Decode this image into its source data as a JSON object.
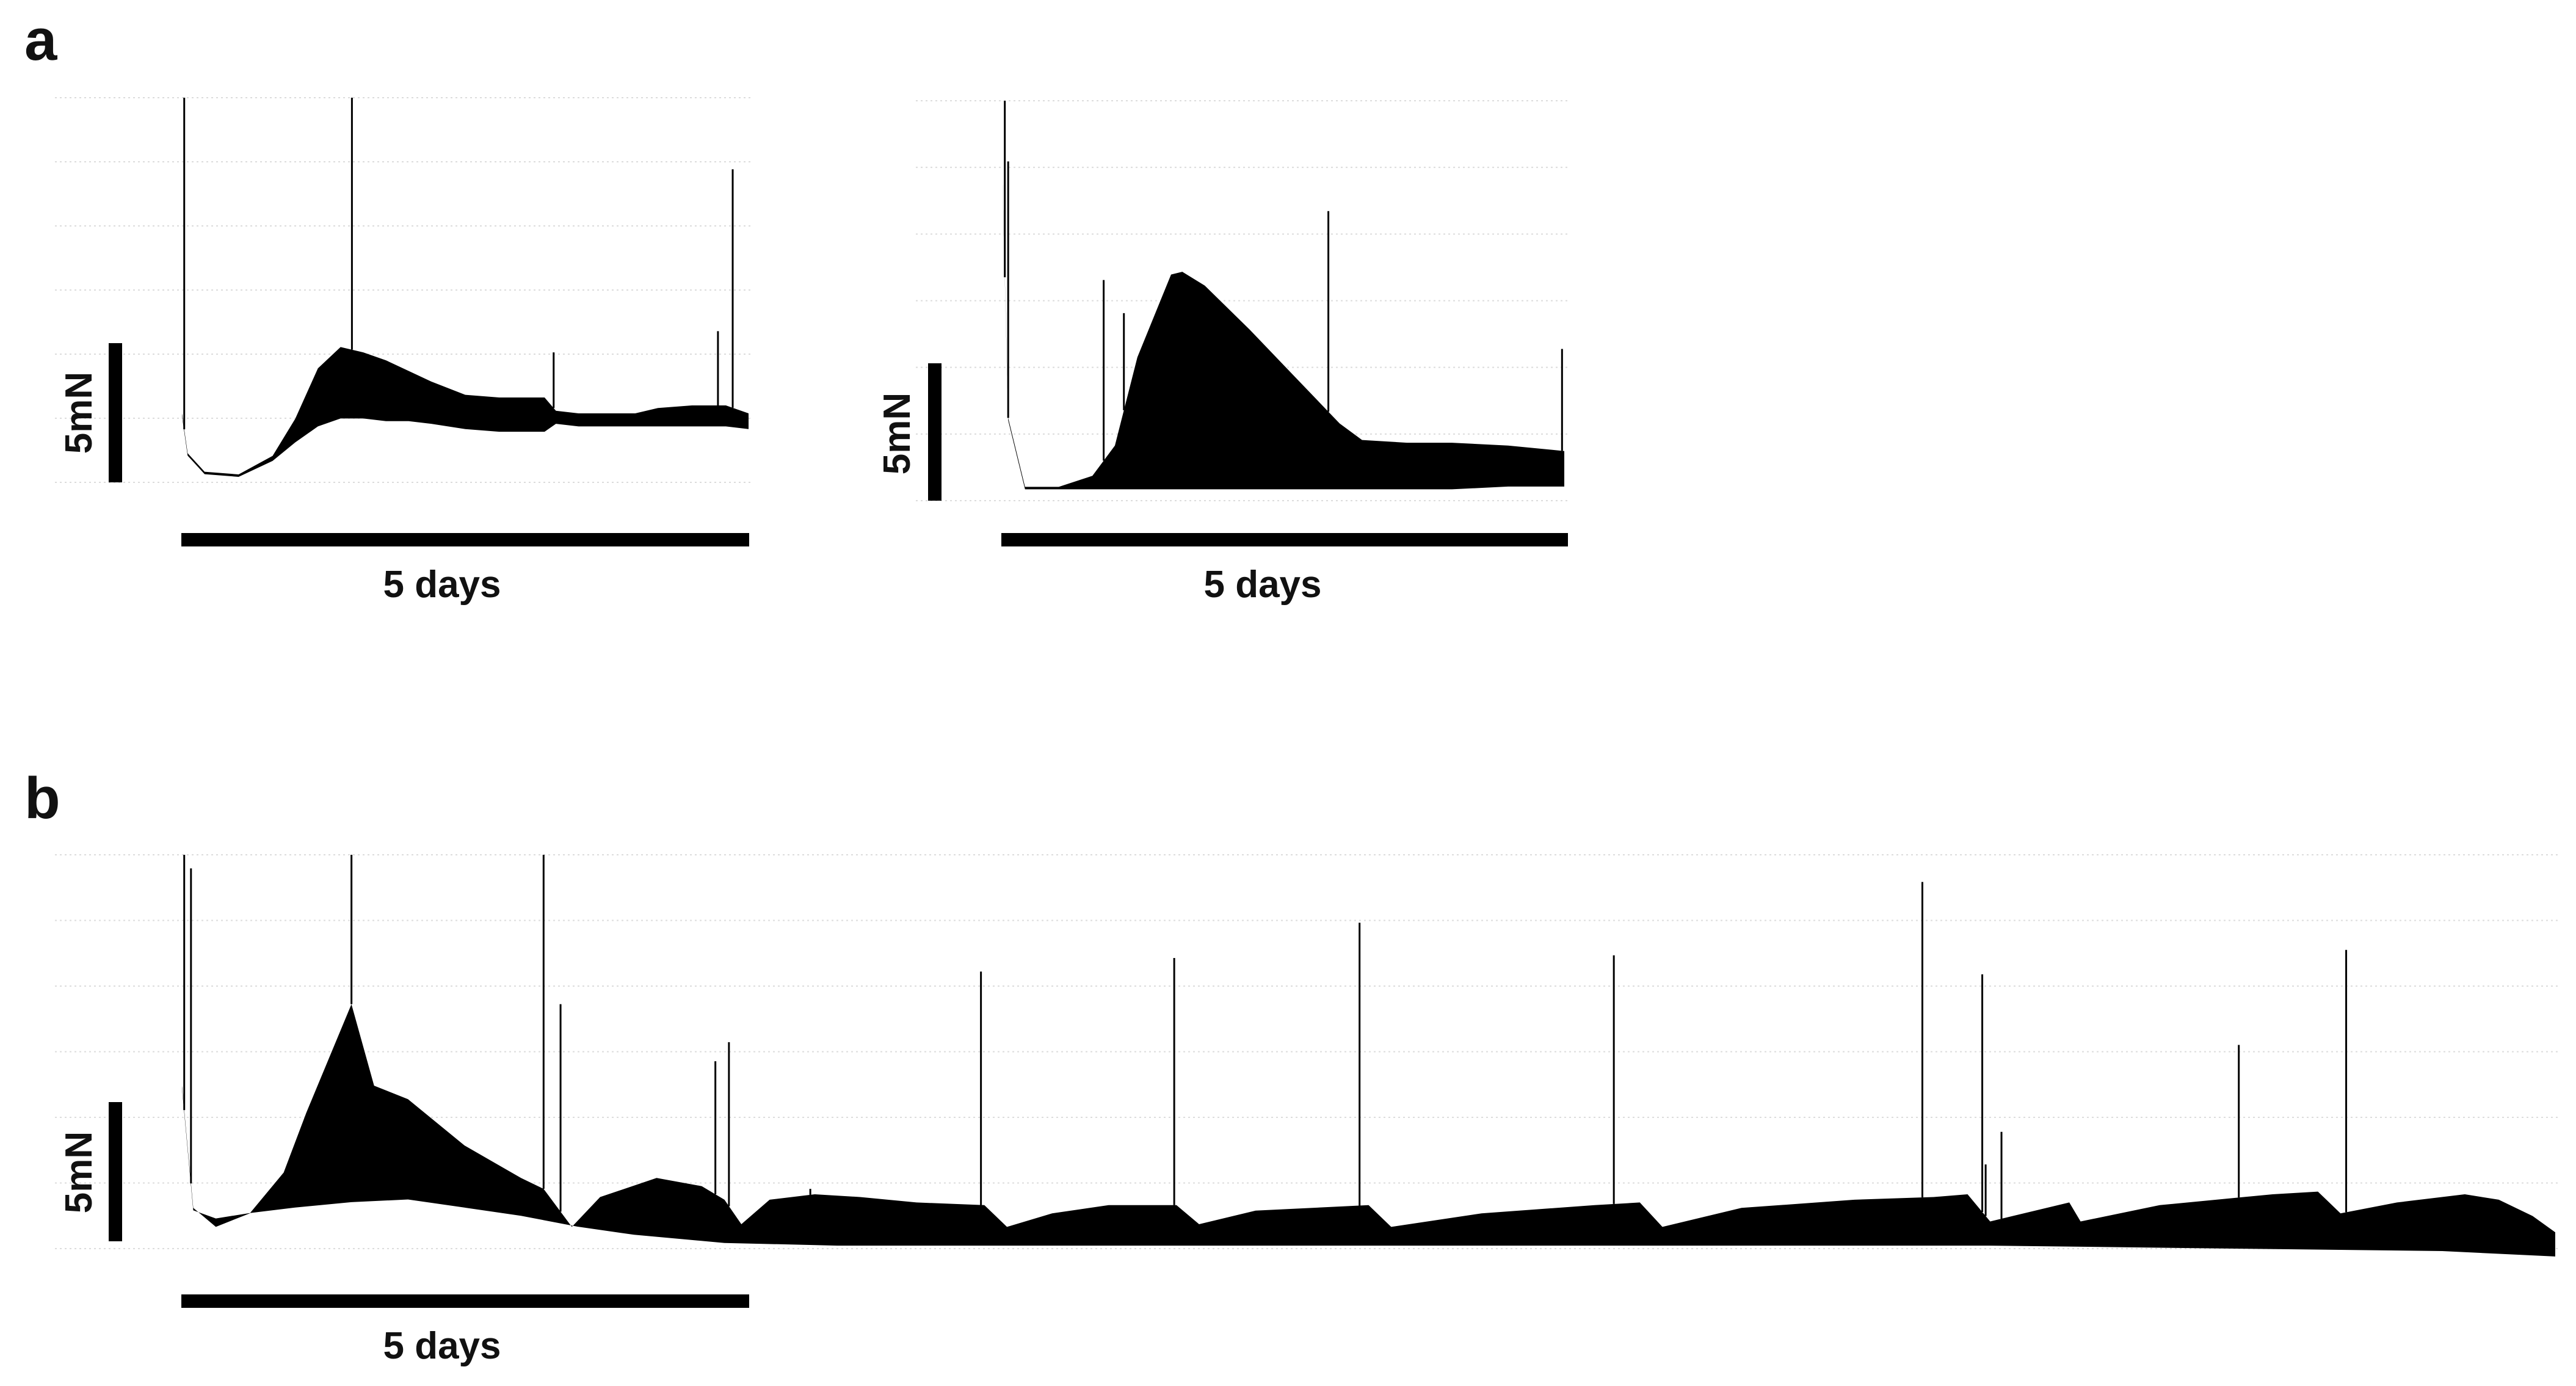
{
  "panel_letters": {
    "a": "a",
    "b": "b"
  },
  "chart_data": [
    {
      "type": "area",
      "panel": "a",
      "scale_bars": {
        "force": "5mN",
        "time": "5 days"
      },
      "x_unit": "days",
      "y_unit": "mN",
      "xlim": [
        0,
        5
      ],
      "ylim": [
        0,
        14.5
      ],
      "grid": true,
      "series": [
        {
          "values_hi": [
            [
              0.0,
              2.6
            ],
            [
              0.05,
              1.1
            ],
            [
              0.2,
              0.4
            ],
            [
              0.5,
              0.3
            ],
            [
              0.8,
              1.0
            ],
            [
              1.0,
              2.4
            ],
            [
              1.2,
              4.3
            ],
            [
              1.4,
              5.1
            ],
            [
              1.6,
              4.9
            ],
            [
              1.8,
              4.6
            ],
            [
              2.0,
              4.2
            ],
            [
              2.2,
              3.8
            ],
            [
              2.5,
              3.3
            ],
            [
              2.8,
              3.2
            ],
            [
              3.2,
              3.2
            ],
            [
              3.3,
              2.7
            ],
            [
              3.5,
              2.6
            ],
            [
              4.0,
              2.6
            ],
            [
              4.2,
              2.8
            ],
            [
              4.5,
              2.9
            ],
            [
              4.8,
              2.9
            ],
            [
              5.0,
              2.6
            ]
          ],
          "values_lo": [
            [
              0.0,
              2.6
            ],
            [
              0.05,
              1.1
            ],
            [
              0.2,
              0.4
            ],
            [
              0.5,
              0.3
            ],
            [
              0.8,
              0.9
            ],
            [
              1.0,
              1.6
            ],
            [
              1.2,
              2.2
            ],
            [
              1.4,
              2.5
            ],
            [
              1.6,
              2.5
            ],
            [
              1.8,
              2.4
            ],
            [
              2.0,
              2.4
            ],
            [
              2.2,
              2.3
            ],
            [
              2.5,
              2.1
            ],
            [
              2.8,
              2.0
            ],
            [
              3.2,
              2.0
            ],
            [
              3.3,
              2.3
            ],
            [
              3.5,
              2.2
            ],
            [
              4.0,
              2.2
            ],
            [
              4.2,
              2.2
            ],
            [
              4.5,
              2.2
            ],
            [
              4.8,
              2.2
            ],
            [
              5.0,
              2.1
            ]
          ],
          "spikes": [
            [
              0.02,
              14.5
            ],
            [
              1.5,
              14.5
            ],
            [
              3.28,
              4.9
            ],
            [
              4.73,
              5.7
            ],
            [
              4.86,
              11.8
            ]
          ]
        }
      ]
    },
    {
      "type": "area",
      "panel": "a",
      "scale_bars": {
        "force": "5mN",
        "time": "5 days"
      },
      "x_unit": "days",
      "y_unit": "mN",
      "xlim": [
        0,
        5
      ],
      "ylim": [
        0,
        14.5
      ],
      "grid": true,
      "series": [
        {
          "values_hi": [
            [
              0.0,
              11.5
            ],
            [
              0.05,
              3.0
            ],
            [
              0.2,
              0.5
            ],
            [
              0.5,
              0.5
            ],
            [
              0.8,
              0.9
            ],
            [
              1.0,
              2.0
            ],
            [
              1.2,
              5.2
            ],
            [
              1.5,
              8.2
            ],
            [
              1.6,
              8.3
            ],
            [
              1.8,
              7.8
            ],
            [
              2.2,
              6.2
            ],
            [
              2.6,
              4.5
            ],
            [
              3.0,
              2.8
            ],
            [
              3.2,
              2.2
            ],
            [
              3.6,
              2.1
            ],
            [
              4.0,
              2.1
            ],
            [
              4.5,
              2.0
            ],
            [
              5.0,
              1.8
            ]
          ],
          "values_lo": [
            [
              0.0,
              11.5
            ],
            [
              0.05,
              3.0
            ],
            [
              0.2,
              0.5
            ],
            [
              0.5,
              0.5
            ],
            [
              0.8,
              0.5
            ],
            [
              1.0,
              0.5
            ],
            [
              1.5,
              0.5
            ],
            [
              2.0,
              0.5
            ],
            [
              2.5,
              0.5
            ],
            [
              3.0,
              0.5
            ],
            [
              3.5,
              0.5
            ],
            [
              4.0,
              0.5
            ],
            [
              4.5,
              0.6
            ],
            [
              5.0,
              0.6
            ]
          ],
          "spikes": [
            [
              0.02,
              14.5
            ],
            [
              0.05,
              12.3
            ],
            [
              0.9,
              8.0
            ],
            [
              1.08,
              6.8
            ],
            [
              2.9,
              10.5
            ],
            [
              4.98,
              5.5
            ]
          ]
        }
      ]
    },
    {
      "type": "area",
      "panel": "b",
      "scale_bars": {
        "force": "5mN",
        "time": "5 days"
      },
      "x_unit": "days",
      "y_unit": "mN",
      "xlim": [
        0,
        21
      ],
      "ylim": [
        0,
        14.5
      ],
      "grid": true,
      "series": [
        {
          "values_hi": [
            [
              0.0,
              6.0
            ],
            [
              0.1,
              1.5
            ],
            [
              0.3,
              0.8
            ],
            [
              0.6,
              1.3
            ],
            [
              0.9,
              2.8
            ],
            [
              1.1,
              5.0
            ],
            [
              1.3,
              7.0
            ],
            [
              1.5,
              9.0
            ],
            [
              1.7,
              6.0
            ],
            [
              2.0,
              5.5
            ],
            [
              2.5,
              3.8
            ],
            [
              3.0,
              2.6
            ],
            [
              3.2,
              2.2
            ],
            [
              3.45,
              0.8
            ],
            [
              3.7,
              1.9
            ],
            [
              4.2,
              2.6
            ],
            [
              4.6,
              2.3
            ],
            [
              4.8,
              1.8
            ],
            [
              4.95,
              0.9
            ],
            [
              5.2,
              1.8
            ],
            [
              5.6,
              2.0
            ],
            [
              6.0,
              1.9
            ],
            [
              6.5,
              1.7
            ],
            [
              7.1,
              1.6
            ],
            [
              7.3,
              0.8
            ],
            [
              7.7,
              1.3
            ],
            [
              8.2,
              1.6
            ],
            [
              8.8,
              1.6
            ],
            [
              9.0,
              0.9
            ],
            [
              9.5,
              1.4
            ],
            [
              10.5,
              1.6
            ],
            [
              10.7,
              0.8
            ],
            [
              11.5,
              1.3
            ],
            [
              12.5,
              1.6
            ],
            [
              12.9,
              1.7
            ],
            [
              13.1,
              0.8
            ],
            [
              13.8,
              1.5
            ],
            [
              14.8,
              1.8
            ],
            [
              15.5,
              1.9
            ],
            [
              15.8,
              2.0
            ],
            [
              16.0,
              1.0
            ],
            [
              16.7,
              1.7
            ],
            [
              16.8,
              1.0
            ],
            [
              17.5,
              1.6
            ],
            [
              18.5,
              2.0
            ],
            [
              18.9,
              2.1
            ],
            [
              19.1,
              1.3
            ],
            [
              19.6,
              1.7
            ],
            [
              20.2,
              2.0
            ],
            [
              20.5,
              1.8
            ],
            [
              20.8,
              1.2
            ],
            [
              21.0,
              0.6
            ]
          ],
          "values_lo": [
            [
              0.0,
              6.0
            ],
            [
              0.1,
              1.5
            ],
            [
              0.3,
              1.2
            ],
            [
              0.6,
              1.4
            ],
            [
              1.0,
              1.6
            ],
            [
              1.5,
              1.8
            ],
            [
              2.0,
              1.9
            ],
            [
              2.5,
              1.6
            ],
            [
              3.0,
              1.3
            ],
            [
              3.5,
              0.9
            ],
            [
              4.0,
              0.6
            ],
            [
              4.8,
              0.3
            ],
            [
              5.8,
              0.2
            ],
            [
              8.0,
              0.2
            ],
            [
              10.0,
              0.2
            ],
            [
              12.0,
              0.2
            ],
            [
              14.0,
              0.2
            ],
            [
              16.0,
              0.2
            ],
            [
              18.0,
              0.1
            ],
            [
              20.0,
              0.0
            ],
            [
              21.0,
              -0.2
            ]
          ],
          "spikes": [
            [
              0.02,
              14.5
            ],
            [
              0.08,
              14.0
            ],
            [
              1.5,
              14.5
            ],
            [
              3.2,
              14.5
            ],
            [
              3.35,
              9.0
            ],
            [
              4.72,
              6.9
            ],
            [
              4.84,
              7.6
            ],
            [
              5.56,
              2.2
            ],
            [
              7.07,
              10.2
            ],
            [
              8.78,
              10.7
            ],
            [
              10.42,
              12.0
            ],
            [
              12.67,
              10.8
            ],
            [
              15.4,
              13.5
            ],
            [
              15.93,
              10.1
            ],
            [
              15.96,
              3.1
            ],
            [
              16.1,
              4.3
            ],
            [
              18.2,
              7.5
            ],
            [
              19.15,
              11.0
            ]
          ]
        }
      ]
    }
  ]
}
